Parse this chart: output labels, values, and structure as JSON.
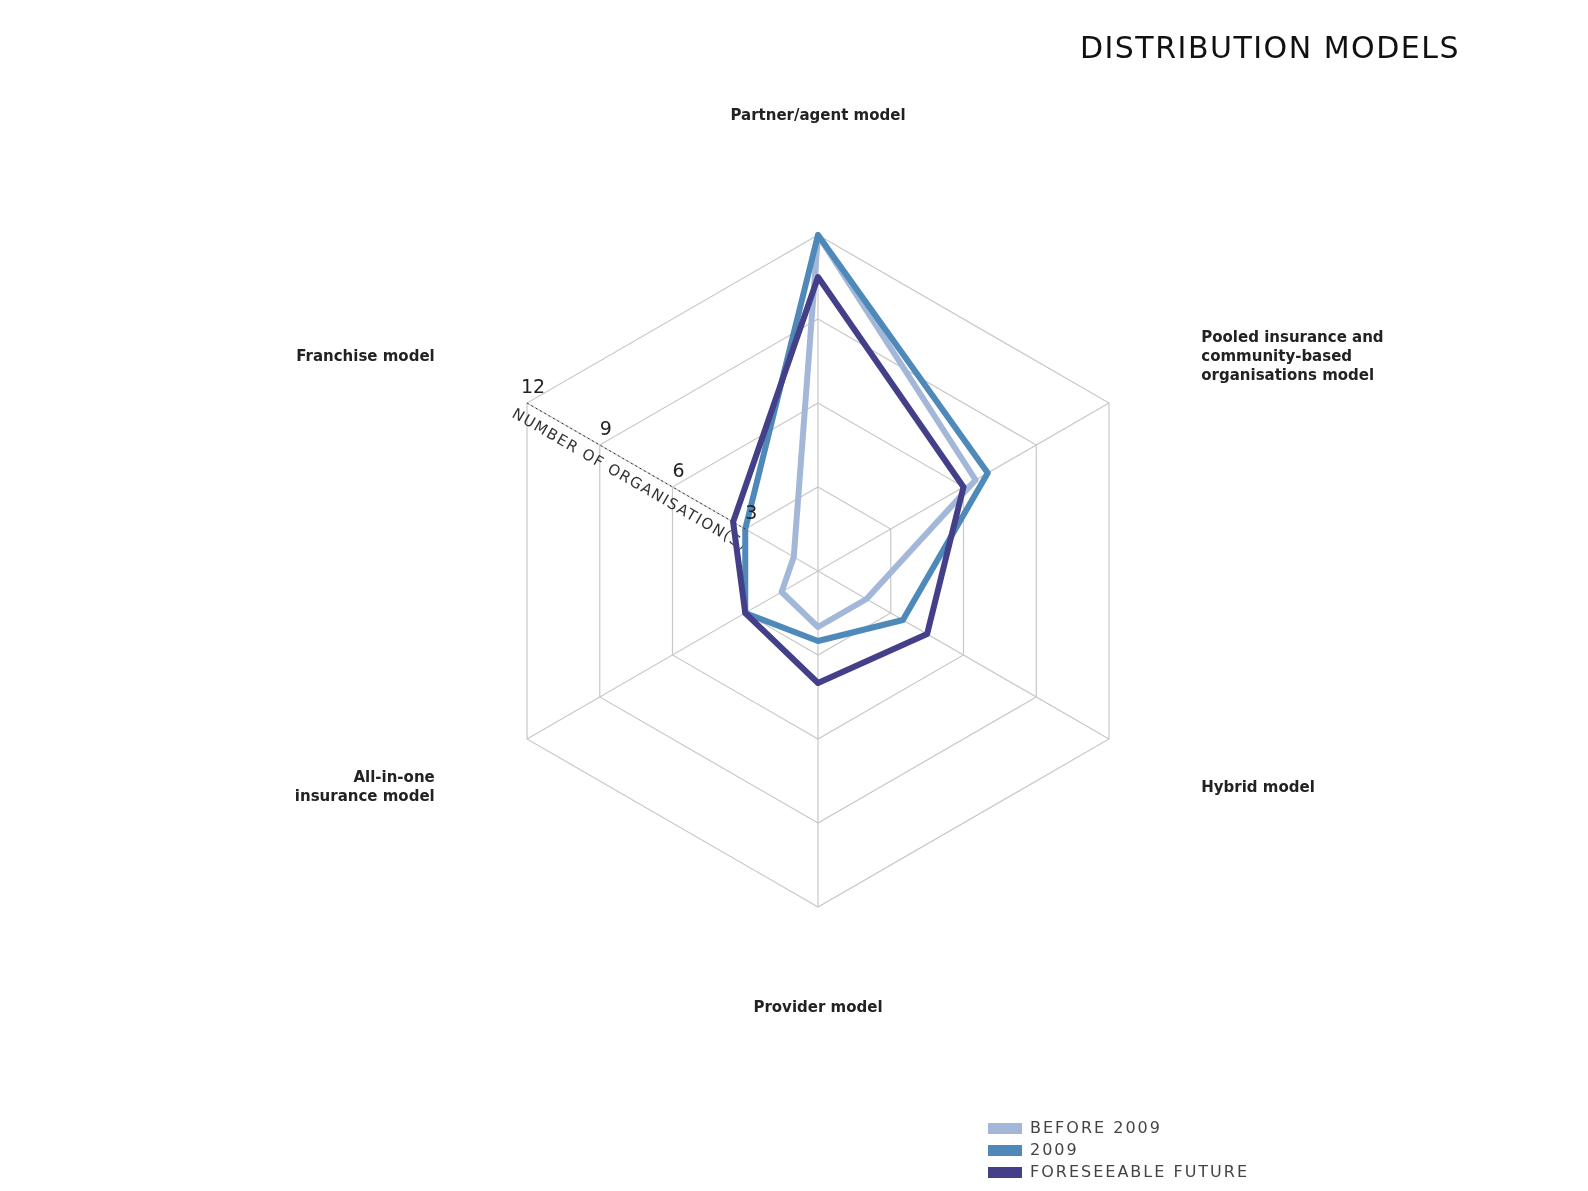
{
  "chart_data": {
    "type": "radar",
    "title": "DISTRIBUTION MODELS",
    "ylabel": "NUMBER OF ORGANISATION(S)",
    "categories": [
      "Partner/agent model",
      "Pooled insurance and community-based organisations model",
      "Hybrid model",
      "Provider model",
      "All-in-one insurance model",
      "Franchise model"
    ],
    "series": [
      {
        "name": "BEFORE 2009",
        "color": "#a3b8d9",
        "values": [
          12,
          6.5,
          2,
          2,
          1.5,
          1
        ]
      },
      {
        "name": "2009",
        "color": "#4f89b9",
        "values": [
          12,
          7,
          3.5,
          2.5,
          3,
          3
        ]
      },
      {
        "name": "FORESEEABLE FUTURE",
        "color": "#433f88",
        "values": [
          10.5,
          6,
          4.5,
          4,
          3,
          3.5
        ]
      }
    ],
    "ylim": [
      0,
      12
    ],
    "yticks": [
      3,
      6,
      9,
      12
    ],
    "grid": true,
    "legend": "bottom right",
    "marker": "none"
  }
}
